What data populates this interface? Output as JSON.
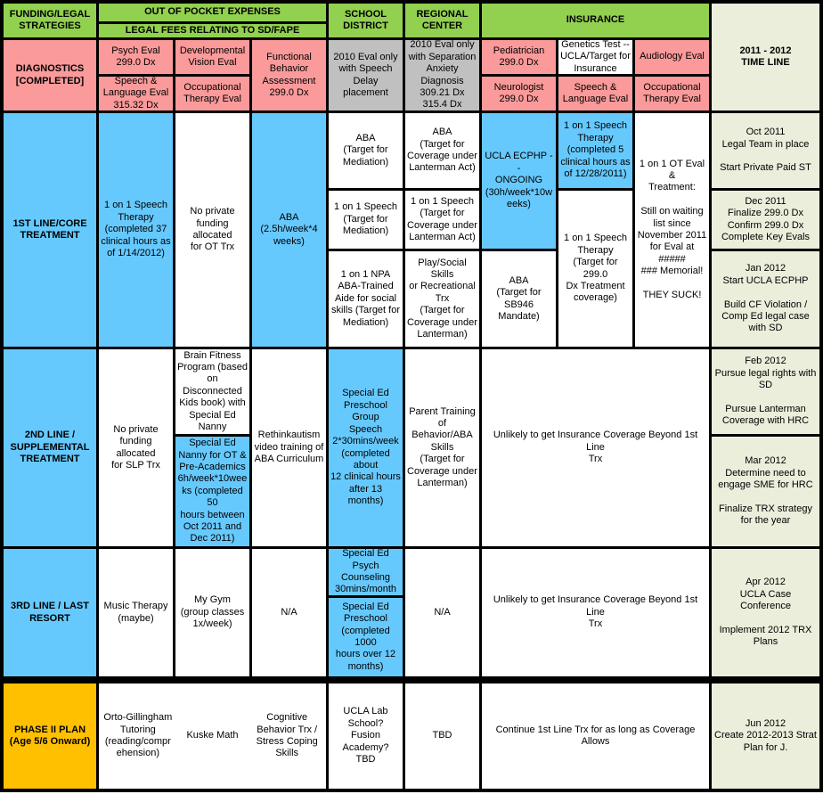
{
  "palette": {
    "header_green": "#92D050",
    "diagnostics_pink": "#FA9A9A",
    "active_blue": "#66C9FD",
    "district_gray": "#C0C0C0",
    "timeline_sage": "#EAEEDB",
    "phase2_orange": "#FFC000",
    "grid_border": "#000000"
  },
  "header": {
    "funding_legal": "FUNDING/LEGAL\nSTRATEGIES",
    "out_of_pocket": "OUT OF POCKET EXPENSES",
    "legal_fees": "LEGAL FEES RELATING TO SD/FAPE",
    "school_district": "SCHOOL\nDISTRICT",
    "regional_center": "REGIONAL\nCENTER",
    "insurance": "INSURANCE",
    "timeline": "2011 - 2012\nTIME LINE"
  },
  "diagnostics": {
    "label": "DIAGNOSTICS\n[COMPLETED]",
    "psych_eval": "Psych Eval\n299.0 Dx",
    "speech_language_eval": "Speech &\nLanguage Eval\n315.32 Dx",
    "dev_vision_eval": "Developmental\nVision Eval",
    "ot_eval": "Occupational\nTherapy Eval",
    "fba": "Functional\nBehavior\nAssessment\n299.0 Dx",
    "school_district": "2010 Eval only\nwith Speech\nDelay placement",
    "regional_center": "2010 Eval only\nwith Separation\nAnxiety\nDiagnosis\n309.21 Dx\n315.4 Dx",
    "pediatrician": "Pediatrician\n299.0 Dx",
    "neurologist": "Neurologist\n299.0 Dx",
    "genetics_test": "Genetics Test --\nUCLA/Target for\nInsurance",
    "ins_speech_language_eval": "Speech &\nLanguage Eval",
    "audiology_eval": "Audiology Eval",
    "ins_ot_eval": "Occupational\nTherapy Eval"
  },
  "line1": {
    "label": "1ST LINE/CORE\nTREATMENT",
    "speech_therapy": "1 on 1 Speech\nTherapy\n(completed 37\nclinical hours as\nof 1/14/2012)",
    "no_ot_funding": "No private\nfunding allocated\nfor OT Trx",
    "aba": "ABA\n(2.5h/week*4\nweeks)",
    "sd_aba": "ABA\n(Target for\nMediation)",
    "sd_speech": "1 on 1 Speech\n(Target for\nMediation)",
    "sd_npa_aide": "1 on 1 NPA ABA-Trained Aide for social skills (Target for Mediation)",
    "rc_aba": "ABA\n(Target for\nCoverage under\nLanterman Act)",
    "rc_speech": "1 on 1 Speech\n(Target for\nCoverage under\nLanterman Act)",
    "rc_play": "Play/Social Skills\nor Recreational\nTrx\n(Target for\nCoverage under\nLanterman)",
    "ucla_ecphp": "UCLA ECPHP --\nONGOING\n(30h/week*10weeks)",
    "ins_aba": "ABA\n(Target for\nSB946 Mandate)",
    "ins_speech_completed": "1 on 1 Speech\nTherapy\n(completed 5\nclinical hours as\nof 12/28/2011)",
    "ins_speech_target": "1 on 1 Speech\nTherapy\n(Target for 299.0\nDx Treatment\ncoverage)",
    "ins_ot": "1 on 1 OT Eval &\nTreatment:\n\nStill on waiting\nlist since\nNovember 2011\nfor Eval at #####\n### Memorial!\n\nTHEY SUCK!"
  },
  "line2": {
    "label": "2ND LINE /\nSUPPLEMENTAL\nTREATMENT",
    "no_slp_funding": "No private\nfunding allocated\nfor SLP Trx",
    "brain_fitness": "Brain Fitness\nProgram (based\non Disconnected\nKids book) with\nSpecial Ed\nNanny",
    "sped_nanny": "Special Ed\nNanny for OT &\nPre-Academics\n6h/week*10weeks (completed 50\nhours between\nOct 2011 and\nDec 2011)",
    "rethinkautism": "Rethinkautism\nvideo training of\nABA Curriculum",
    "sd_group_speech": "Special Ed\nPreschool Group\nSpeech\n2*30mins/week\n(completed about\n12 clinical hours\nafter 13 months)",
    "rc_parent_training": "Parent Training\nof Behavior/ABA\nSkills\n(Target for\nCoverage under\nLanterman)",
    "ins_unlikely": "Unlikely to get Insurance Coverage Beyond 1st Line\nTrx"
  },
  "line3": {
    "label": "3RD LINE / LAST\nRESORT",
    "music_therapy": "Music Therapy\n(maybe)",
    "my_gym": "My Gym\n(group classes\n1x/week)",
    "na_oop": "N/A",
    "sd_psych_counseling": "Special Ed\nPsych\nCounseling\n30mins/month",
    "sd_preschool": "Special Ed\nPreschool\n(completed 1000\nhours over 12\nmonths)",
    "rc_na": "N/A",
    "ins_unlikely": "Unlikely to get Insurance Coverage Beyond 1st Line\nTrx"
  },
  "phase2": {
    "label": "PHASE II PLAN\n(Age 5/6 Onward)",
    "orto_gillingham": "Orto-Gillingham\nTutoring\n(reading/comprehension)",
    "kuske_math": "Kuske Math",
    "cognitive_behavior": "Cognitive\nBehavior Trx /\nStress Coping\nSkills",
    "school_district": "UCLA Lab\nSchool?\nFusion\nAcademy?\nTBD",
    "regional_center": "TBD",
    "insurance": "Continue 1st Line Trx for as long as Coverage Allows"
  },
  "timeline": {
    "oct2011": "Oct 2011\nLegal Team in place\n\nStart Private Paid ST",
    "dec2011": "Dec 2011\nFinalize 299.0 Dx\nConfirm 299.0 Dx\nComplete Key Evals",
    "jan2012": "Jan 2012\nStart UCLA ECPHP\n\nBuild CF Violation /\nComp Ed legal case\nwith SD",
    "feb2012": "Feb 2012\nPursue legal rights with\nSD\n\nPursue Lanterman\nCoverage with HRC",
    "mar2012": "Mar 2012\nDetermine need to\nengage SME for HRC\n\nFinalize TRX strategy\nfor the year",
    "apr2012": "Apr 2012\nUCLA Case Conference\n\nImplement 2012 TRX\nPlans",
    "jun2012": "Jun 2012\nCreate 2012-2013 Strat\nPlan for J."
  }
}
